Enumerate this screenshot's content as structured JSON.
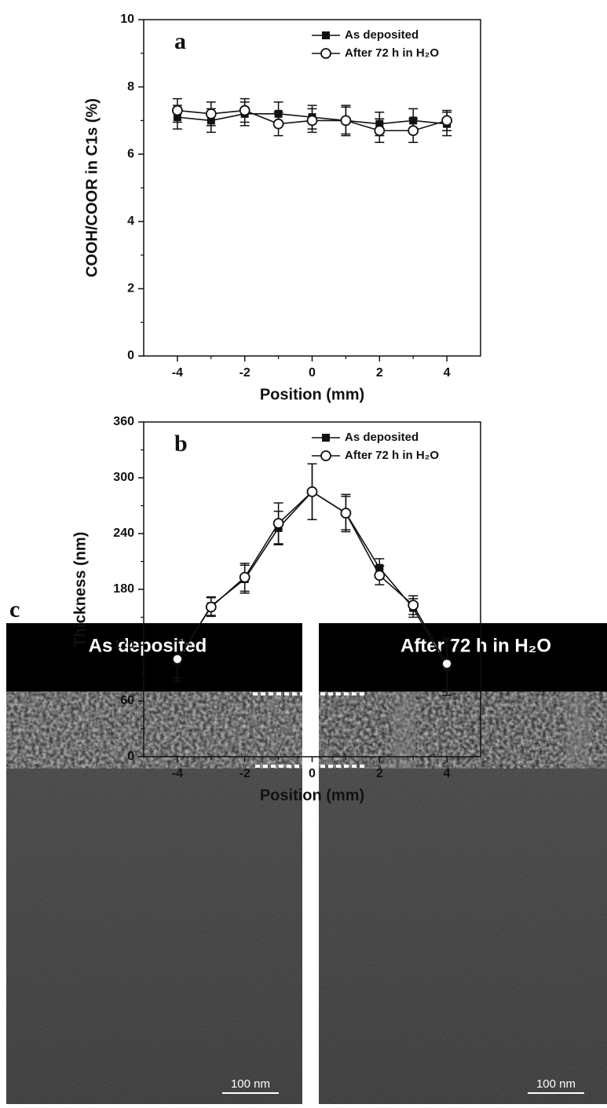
{
  "chart_data": [
    {
      "type": "line",
      "label": "a",
      "xlabel": "Position (mm)",
      "ylabel": "COOH/COOR in C1s (%)",
      "x": [
        -4,
        -3,
        -2,
        -1,
        0,
        1,
        2,
        3,
        4
      ],
      "xlim": [
        -5,
        5
      ],
      "xticks": [
        -4,
        -2,
        0,
        2,
        4
      ],
      "ylim": [
        0,
        10
      ],
      "yticks": [
        0,
        2,
        4,
        6,
        8,
        10
      ],
      "legend": "upper right",
      "series": [
        {
          "name": "As deposited",
          "color": "#111111",
          "marker": "square",
          "values": [
            7.1,
            7.0,
            7.2,
            7.2,
            7.1,
            7.0,
            6.9,
            7.0,
            6.9
          ],
          "errors": [
            0.35,
            0.35,
            0.35,
            0.35,
            0.35,
            0.4,
            0.35,
            0.35,
            0.35
          ]
        },
        {
          "name": "After 72 h in H₂O",
          "color": "#111111",
          "marker": "open-circle",
          "values": [
            7.3,
            7.2,
            7.3,
            6.9,
            7.0,
            7.0,
            6.7,
            6.7,
            7.0
          ],
          "errors": [
            0.35,
            0.35,
            0.35,
            0.35,
            0.35,
            0.45,
            0.35,
            0.35,
            0.3
          ]
        }
      ]
    },
    {
      "type": "line",
      "label": "b",
      "xlabel": "Position (mm)",
      "ylabel": "Thickness (nm)",
      "x": [
        -4,
        -3,
        -2,
        -1,
        0,
        1,
        2,
        3,
        4
      ],
      "xlim": [
        -5,
        5
      ],
      "xticks": [
        -4,
        -2,
        0,
        2,
        4
      ],
      "ylim": [
        0,
        360
      ],
      "yticks": [
        0,
        60,
        120,
        180,
        240,
        300,
        360
      ],
      "legend": "upper right",
      "series": [
        {
          "name": "As deposited",
          "color": "#111111",
          "marker": "square",
          "values": [
            103,
            162,
            191,
            246,
            285,
            262,
            203,
            160,
            96
          ],
          "errors": [
            22,
            10,
            15,
            18,
            30,
            18,
            10,
            10,
            30
          ]
        },
        {
          "name": "After 72 h in H₂O",
          "color": "#111111",
          "marker": "open-circle",
          "values": [
            105,
            161,
            193,
            251,
            285,
            262,
            195,
            163,
            100
          ],
          "errors": [
            20,
            10,
            15,
            22,
            30,
            20,
            10,
            10,
            28
          ]
        }
      ]
    }
  ],
  "panel_c": {
    "label": "c",
    "images": [
      {
        "title": "As deposited",
        "scale_bar": "100 nm"
      },
      {
        "title": "After 72 h in H₂O",
        "scale_bar": "100 nm"
      }
    ]
  }
}
